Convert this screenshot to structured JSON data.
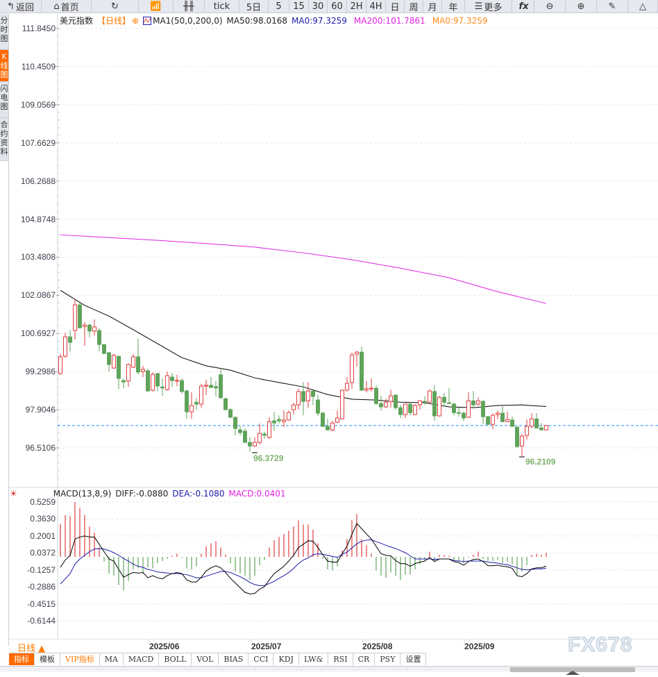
{
  "toolbar": {
    "items": [
      {
        "icon": "back-arrow-icon",
        "label": "返回"
      },
      {
        "icon": "home-icon",
        "label": "首页"
      },
      {
        "icon": "refresh-icon",
        "label": ""
      },
      {
        "icon": "bar-chart-icon",
        "label": ""
      },
      {
        "icon": "candlestick-icon",
        "label": ""
      },
      {
        "label": "tick"
      },
      {
        "label": "5日"
      },
      {
        "label": "5"
      },
      {
        "label": "15"
      },
      {
        "label": "30"
      },
      {
        "label": "60"
      },
      {
        "label": "2H"
      },
      {
        "label": "4H"
      },
      {
        "label": "日"
      },
      {
        "label": "周"
      },
      {
        "label": "月"
      },
      {
        "label": "年"
      },
      {
        "icon": "menu-icon",
        "label": "更多"
      },
      {
        "icon": "function-icon",
        "label": "fx"
      },
      {
        "icon": "zoom-out-icon",
        "label": ""
      },
      {
        "icon": "zoom-in-icon",
        "label": ""
      },
      {
        "icon": "pencil-icon",
        "label": ""
      },
      {
        "icon": "triangle-icon",
        "label": ""
      }
    ]
  },
  "sidebar": {
    "items": [
      {
        "label": "分时图",
        "active": false
      },
      {
        "label": "K线图",
        "active": true
      },
      {
        "label": "闪电图",
        "active": false
      },
      {
        "label": "合约资料",
        "active": false
      }
    ]
  },
  "legend": {
    "symbol": "美元指数",
    "period": "【日线】",
    "ma_def": "MA1(50,0,200,0)",
    "ma50": "MA50:98.0168",
    "ma0": "MA0:97.3259",
    "ma200": "MA200:101.7861",
    "ma0b": "MA0:97.3259"
  },
  "macd_legend": {
    "name": "MACD(13,8,9)",
    "diff": "DIFF:-0.0880",
    "dea": "DEA:-0.1080",
    "macd": "MACD:0.0401"
  },
  "colors": {
    "up": "#e03c3c",
    "down": "#5fa35a",
    "ma50": "#000000",
    "ma200": "#e020e0",
    "last_price_line": "#1e8fff",
    "diff": "#000000",
    "dea": "#1a1aa8",
    "accent": "#ff6a00"
  },
  "price_axis": [
    "111.8450",
    "110.4509",
    "109.0569",
    "107.6629",
    "106.2688",
    "104.8748",
    "103.4808",
    "102.0867",
    "100.6927",
    "99.2986",
    "97.9046",
    "96.5106"
  ],
  "macd_axis": [
    "0.5259",
    "0.3630",
    "0.2001",
    "0.0372",
    "-0.1257",
    "-0.2886",
    "-0.4515",
    "-0.6144"
  ],
  "annotations": {
    "low1": "96.3729",
    "low2": "96.2109"
  },
  "date_axis": [
    "2025/06",
    "2025/07",
    "2025/08",
    "2025/09"
  ],
  "period_selector": "日线 ▲",
  "bottom_tabs": [
    {
      "label": "指标",
      "active": true
    },
    {
      "label": "模板"
    },
    {
      "label": "VIP指标",
      "vip": true
    },
    {
      "label": "MA"
    },
    {
      "label": "MACD"
    },
    {
      "label": "BOLL"
    },
    {
      "label": "VOL"
    },
    {
      "label": "BIAS"
    },
    {
      "label": "CCI"
    },
    {
      "label": "KDJ"
    },
    {
      "label": "LW&"
    },
    {
      "label": "RSI"
    },
    {
      "label": "CR"
    },
    {
      "label": "PSY"
    },
    {
      "label": "设置"
    }
  ],
  "watermark": "FX678",
  "chart_data": {
    "type": "candlestick",
    "ylim": [
      96.5106,
      111.845
    ],
    "last_price": 97.3259,
    "ohlc": [
      [
        99.23,
        99.94,
        99.18,
        99.84
      ],
      [
        99.86,
        100.72,
        99.81,
        100.57
      ],
      [
        100.57,
        100.82,
        100.04,
        100.37
      ],
      [
        100.8,
        101.94,
        100.47,
        101.74
      ],
      [
        101.74,
        101.82,
        100.88,
        100.9
      ],
      [
        100.95,
        101.11,
        100.24,
        101.0
      ],
      [
        101.0,
        101.05,
        100.55,
        100.78
      ],
      [
        100.78,
        101.21,
        100.62,
        100.93
      ],
      [
        100.8,
        100.88,
        100.04,
        100.29
      ],
      [
        100.29,
        100.29,
        99.94,
        99.96
      ],
      [
        99.99,
        100.01,
        99.3,
        99.56
      ],
      [
        99.43,
        99.96,
        99.4,
        99.89
      ],
      [
        99.86,
        99.86,
        98.67,
        99.05
      ],
      [
        98.97,
        99.05,
        98.69,
        98.92
      ],
      [
        98.95,
        99.6,
        98.74,
        99.56
      ],
      [
        99.46,
        99.94,
        99.43,
        99.84
      ],
      [
        99.84,
        100.5,
        99.2,
        99.28
      ],
      [
        99.3,
        99.51,
        99.1,
        99.38
      ],
      [
        99.33,
        99.4,
        98.57,
        98.59
      ],
      [
        98.62,
        99.28,
        98.57,
        99.2
      ],
      [
        99.23,
        99.25,
        98.59,
        98.77
      ],
      [
        98.74,
        99.05,
        98.41,
        98.7
      ],
      [
        98.64,
        99.3,
        98.6,
        99.15
      ],
      [
        99.1,
        99.25,
        98.74,
        98.97
      ],
      [
        98.95,
        99.18,
        98.77,
        98.98
      ],
      [
        98.97,
        99.05,
        98.49,
        98.57
      ],
      [
        98.59,
        98.64,
        97.57,
        97.83
      ],
      [
        97.83,
        98.54,
        97.57,
        98.06
      ],
      [
        98.18,
        98.34,
        97.91,
        98.11
      ],
      [
        98.11,
        98.85,
        97.98,
        98.77
      ],
      [
        98.77,
        99.0,
        98.44,
        98.8
      ],
      [
        98.8,
        99.1,
        98.7,
        98.72
      ],
      [
        98.75,
        98.95,
        98.39,
        98.7
      ],
      [
        99.18,
        99.38,
        98.32,
        98.34
      ],
      [
        98.31,
        98.34,
        97.88,
        97.91
      ],
      [
        97.91,
        97.96,
        97.6,
        97.63
      ],
      [
        97.63,
        97.65,
        96.97,
        97.22
      ],
      [
        97.17,
        97.32,
        96.97,
        97.07
      ],
      [
        97.12,
        97.22,
        96.7,
        96.71
      ],
      [
        96.71,
        96.91,
        96.37,
        96.58
      ],
      [
        96.58,
        96.89,
        96.55,
        96.71
      ],
      [
        96.71,
        97.4,
        96.63,
        97.04
      ],
      [
        97.02,
        97.1,
        96.84,
        96.97
      ],
      [
        96.89,
        97.63,
        96.84,
        97.47
      ],
      [
        97.5,
        97.83,
        97.14,
        97.42
      ],
      [
        97.55,
        97.7,
        97.4,
        97.5
      ],
      [
        97.47,
        97.88,
        97.27,
        97.53
      ],
      [
        97.53,
        97.88,
        97.5,
        97.8
      ],
      [
        97.91,
        98.16,
        97.73,
        98.08
      ],
      [
        98.08,
        98.67,
        97.91,
        98.57
      ],
      [
        98.57,
        98.92,
        97.7,
        98.21
      ],
      [
        98.23,
        98.92,
        97.98,
        98.59
      ],
      [
        98.59,
        98.67,
        98.08,
        98.39
      ],
      [
        98.26,
        98.46,
        97.68,
        97.78
      ],
      [
        97.78,
        97.83,
        97.27,
        97.3
      ],
      [
        97.3,
        97.57,
        97.14,
        97.17
      ],
      [
        97.17,
        97.5,
        97.1,
        97.42
      ],
      [
        97.45,
        97.88,
        97.42,
        97.6
      ],
      [
        97.57,
        98.64,
        97.55,
        98.62
      ],
      [
        98.62,
        99.1,
        98.57,
        98.87
      ],
      [
        98.9,
        99.99,
        98.67,
        99.91
      ],
      [
        99.94,
        100.06,
        99.48,
        100.01
      ],
      [
        100.01,
        100.22,
        98.59,
        98.62
      ],
      [
        98.62,
        98.95,
        98.54,
        98.67
      ],
      [
        98.67,
        99.05,
        98.57,
        98.69
      ],
      [
        98.69,
        98.8,
        98.08,
        98.13
      ],
      [
        98.13,
        98.41,
        97.88,
        98.01
      ],
      [
        98.01,
        98.31,
        97.96,
        98.18
      ],
      [
        98.21,
        98.64,
        97.98,
        98.41
      ],
      [
        98.44,
        98.46,
        97.91,
        97.98
      ],
      [
        97.98,
        98.08,
        97.6,
        97.73
      ],
      [
        97.73,
        98.13,
        97.6,
        98.11
      ],
      [
        98.11,
        98.18,
        97.7,
        97.8
      ],
      [
        97.73,
        98.11,
        97.7,
        98.06
      ],
      [
        98.08,
        98.26,
        97.91,
        98.23
      ],
      [
        98.21,
        98.39,
        98.08,
        98.18
      ],
      [
        98.18,
        98.64,
        98.13,
        98.59
      ],
      [
        98.57,
        98.8,
        97.5,
        97.68
      ],
      [
        97.68,
        98.41,
        97.65,
        98.36
      ],
      [
        98.36,
        98.51,
        98.03,
        98.18
      ],
      [
        98.16,
        98.69,
        98.11,
        98.13
      ],
      [
        98.11,
        98.16,
        97.7,
        97.8
      ],
      [
        97.8,
        97.98,
        97.65,
        97.78
      ],
      [
        97.78,
        97.83,
        97.5,
        97.6
      ],
      [
        97.63,
        98.54,
        97.6,
        98.23
      ],
      [
        98.23,
        98.59,
        97.98,
        98.08
      ],
      [
        98.11,
        98.36,
        98.06,
        98.23
      ],
      [
        98.21,
        98.26,
        97.37,
        97.65
      ],
      [
        97.65,
        97.68,
        97.34,
        97.37
      ],
      [
        97.37,
        97.78,
        97.19,
        97.7
      ],
      [
        97.73,
        97.88,
        97.57,
        97.78
      ],
      [
        97.78,
        98.03,
        97.45,
        97.47
      ],
      [
        97.47,
        97.83,
        97.45,
        97.55
      ],
      [
        97.53,
        97.65,
        97.27,
        97.3
      ],
      [
        97.27,
        97.29,
        96.51,
        96.56
      ],
      [
        96.58,
        97.02,
        96.21,
        96.94
      ],
      [
        96.97,
        97.55,
        96.81,
        97.3
      ],
      [
        97.3,
        97.78,
        97.22,
        97.57
      ],
      [
        97.57,
        97.78,
        97.22,
        97.24
      ],
      [
        97.24,
        97.42,
        97.14,
        97.17
      ],
      [
        97.17,
        97.35,
        97.14,
        97.33
      ]
    ],
    "ma50_every5": [
      102.27,
      101.72,
      101.33,
      100.83,
      100.32,
      99.81,
      99.51,
      99.35,
      99.07,
      98.9,
      98.74,
      98.46,
      98.29,
      98.26,
      98.18,
      98.16,
      98.01,
      97.98,
      98.06,
      98.08,
      98.02
    ],
    "ma200_every10": [
      104.3,
      104.2,
      104.1,
      103.98,
      103.85,
      103.64,
      103.39,
      103.08,
      102.73,
      102.22,
      101.79
    ],
    "macd": {
      "ylim": [
        -0.6144,
        0.5259
      ],
      "hist": [
        0.315,
        0.4,
        0.39,
        0.525,
        0.47,
        0.4,
        0.29,
        0.23,
        0.09,
        -0.045,
        -0.16,
        -0.18,
        -0.27,
        -0.32,
        -0.23,
        -0.12,
        -0.11,
        -0.16,
        -0.1,
        -0.11,
        -0.06,
        -0.04,
        -0.02,
        0.01,
        0.03,
        -0.01,
        -0.11,
        -0.12,
        -0.09,
        0.03,
        0.1,
        0.13,
        0.15,
        0.09,
        0.02,
        -0.06,
        -0.14,
        -0.16,
        -0.18,
        -0.22,
        -0.18,
        -0.08,
        -0.03,
        0.09,
        0.16,
        0.19,
        0.22,
        0.25,
        0.29,
        0.35,
        0.31,
        0.31,
        0.26,
        0.13,
        -0.02,
        -0.12,
        -0.13,
        -0.09,
        0.06,
        0.17,
        0.35,
        0.41,
        0.17,
        0.11,
        0.03,
        -0.13,
        -0.18,
        -0.2,
        -0.15,
        -0.18,
        -0.22,
        -0.17,
        -0.17,
        -0.12,
        -0.07,
        -0.03,
        0.05,
        -0.04,
        0.02,
        0.02,
        0.01,
        -0.03,
        -0.04,
        -0.06,
        -0.01,
        0.02,
        0.05,
        -0.02,
        -0.04,
        -0.04,
        -0.03,
        -0.06,
        -0.05,
        -0.07,
        -0.17,
        -0.14,
        -0.08,
        0.02,
        0.03,
        0.02,
        0.04
      ],
      "diff": [
        -0.1,
        -0.03,
        0.015,
        0.17,
        0.19,
        0.2,
        0.19,
        0.19,
        0.12,
        0.05,
        -0.02,
        -0.04,
        -0.12,
        -0.195,
        -0.17,
        -0.15,
        -0.155,
        -0.15,
        -0.2,
        -0.18,
        -0.2,
        -0.21,
        -0.18,
        -0.16,
        -0.15,
        -0.16,
        -0.22,
        -0.24,
        -0.24,
        -0.195,
        -0.135,
        -0.105,
        -0.085,
        -0.105,
        -0.15,
        -0.205,
        -0.25,
        -0.295,
        -0.34,
        -0.355,
        -0.35,
        -0.31,
        -0.285,
        -0.22,
        -0.16,
        -0.125,
        -0.09,
        -0.04,
        0.015,
        0.09,
        0.12,
        0.155,
        0.15,
        0.09,
        0.02,
        -0.04,
        -0.05,
        -0.05,
        0.03,
        0.105,
        0.215,
        0.32,
        0.27,
        0.22,
        0.17,
        0.1,
        0.03,
        0.015,
        0.01,
        -0.035,
        -0.065,
        -0.065,
        -0.09,
        -0.065,
        -0.05,
        -0.04,
        -0.005,
        -0.045,
        -0.02,
        -0.02,
        -0.02,
        -0.045,
        -0.055,
        -0.08,
        -0.045,
        -0.025,
        -0.02,
        -0.045,
        -0.085,
        -0.085,
        -0.08,
        -0.09,
        -0.095,
        -0.11,
        -0.18,
        -0.19,
        -0.16,
        -0.115,
        -0.105,
        -0.105,
        -0.088
      ],
      "dea": [
        -0.26,
        -0.21,
        -0.16,
        -0.07,
        -0.02,
        0.015,
        0.05,
        0.075,
        0.08,
        0.075,
        0.06,
        0.04,
        0.015,
        -0.015,
        -0.04,
        -0.07,
        -0.09,
        -0.1,
        -0.12,
        -0.13,
        -0.145,
        -0.15,
        -0.155,
        -0.16,
        -0.16,
        -0.165,
        -0.17,
        -0.185,
        -0.2,
        -0.2,
        -0.185,
        -0.17,
        -0.155,
        -0.14,
        -0.14,
        -0.15,
        -0.17,
        -0.19,
        -0.215,
        -0.245,
        -0.265,
        -0.275,
        -0.275,
        -0.255,
        -0.235,
        -0.205,
        -0.18,
        -0.15,
        -0.11,
        -0.065,
        -0.03,
        -0.01,
        0.02,
        0.03,
        0.025,
        0.015,
        0.005,
        -0.005,
        0.025,
        0.045,
        0.085,
        0.125,
        0.15,
        0.16,
        0.165,
        0.145,
        0.13,
        0.11,
        0.095,
        0.08,
        0.06,
        0.04,
        0.01,
        -0.02,
        -0.02,
        -0.02,
        -0.02,
        -0.025,
        -0.02,
        -0.02,
        -0.02,
        -0.035,
        -0.04,
        -0.045,
        -0.04,
        -0.04,
        -0.04,
        -0.04,
        -0.05,
        -0.055,
        -0.06,
        -0.07,
        -0.075,
        -0.09,
        -0.105,
        -0.12,
        -0.125,
        -0.12,
        -0.115,
        -0.115,
        -0.108
      ]
    }
  }
}
